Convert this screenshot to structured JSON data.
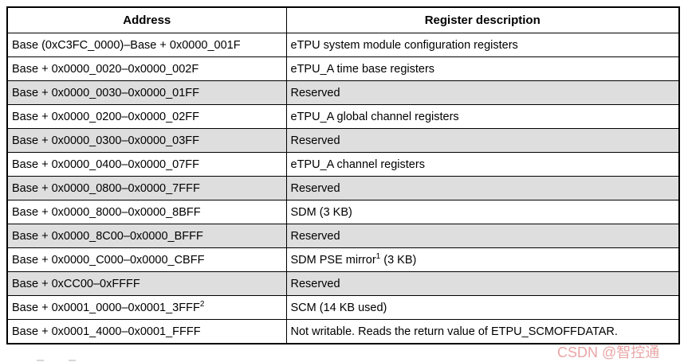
{
  "table": {
    "headers": {
      "address": "Address",
      "description": "Register description"
    },
    "rows": [
      {
        "address": "Base (0xC3FC_0000)–Base + 0x0000_001F",
        "description": "eTPU system module configuration registers"
      },
      {
        "address": "Base + 0x0000_0020–0x0000_002F",
        "description": "eTPU_A time base registers"
      },
      {
        "address": "Base + 0x0000_0030–0x0000_01FF",
        "description": "Reserved"
      },
      {
        "address": "Base + 0x0000_0200–0x0000_02FF",
        "description": "eTPU_A global channel registers"
      },
      {
        "address": "Base + 0x0000_0300–0x0000_03FF",
        "description": "Reserved"
      },
      {
        "address": "Base + 0x0000_0400–0x0000_07FF",
        "description": "eTPU_A channel registers"
      },
      {
        "address": "Base + 0x0000_0800–0x0000_7FFF",
        "description": "Reserved"
      },
      {
        "address": "Base + 0x0000_8000–0x0000_8BFF",
        "description": "SDM (3 KB)"
      },
      {
        "address": "Base + 0x0000_8C00–0x0000_BFFF",
        "description": "Reserved"
      },
      {
        "address": "Base + 0x0000_C000–0x0000_CBFF",
        "description_pre": "SDM PSE mirror",
        "description_sup": "1",
        "description_post": " (3 KB)"
      },
      {
        "address": "Base + 0xCC00–0xFFFF",
        "description": "Reserved"
      },
      {
        "address_pre": "Base + 0x0001_0000–0x0001_3FFF",
        "address_sup": "2",
        "description": "SCM (14 KB used)"
      },
      {
        "address": "Base + 0x0001_4000–0x0001_FFFF",
        "description": "Not writable. Reads the return value of ETPU_SCMOFFDATAR."
      }
    ]
  },
  "watermark": {
    "text": "CSDN @智控通"
  },
  "colors": {
    "shaded_row": "#dedede",
    "border": "#000000",
    "watermark": "#e9a6a6",
    "text": "#000000"
  }
}
